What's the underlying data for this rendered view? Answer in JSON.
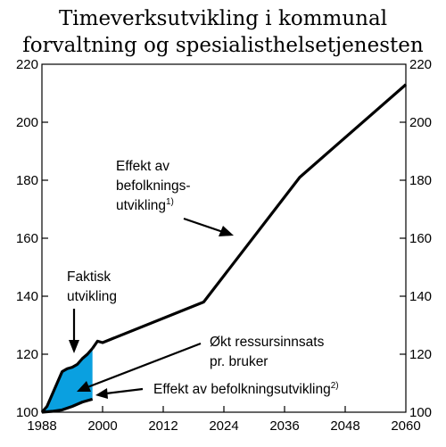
{
  "chart_data": {
    "type": "line",
    "title": [
      "Timeverksutvikling i kommunal",
      "forvaltning og spesialisthelsetjenesten"
    ],
    "xlabel": "",
    "ylabel": "",
    "xlim": [
      1988,
      2060
    ],
    "ylim": [
      100,
      220
    ],
    "x_ticks": [
      "1988",
      "2000",
      "2012",
      "2024",
      "2036",
      "2048",
      "2060"
    ],
    "y_ticks": [
      "100",
      "120",
      "140",
      "160",
      "180",
      "200",
      "220"
    ],
    "grid": false,
    "series": [
      {
        "name": "Faktisk utvikling",
        "style": "thick",
        "x": [
          1988,
          1989,
          1990,
          1991,
          1992,
          1993,
          1994,
          1995,
          1996,
          1997,
          1998
        ],
        "y": [
          100,
          102,
          106,
          110,
          114,
          115,
          115.5,
          116.5,
          118.5,
          120,
          122
        ]
      },
      {
        "name": "Effekt av befolkningsutvikling",
        "style": "thick",
        "x": [
          1998,
          1999,
          2000,
          2020,
          2039,
          2060
        ],
        "y": [
          122,
          124.5,
          124,
          138,
          181,
          213
        ]
      },
      {
        "name": "Effekt av befolkningsutvikling",
        "style": "thick",
        "x": [
          1988,
          1990,
          1992,
          1994,
          1996,
          1998
        ],
        "y": [
          100,
          100.3,
          100.8,
          102,
          103.5,
          104.5
        ]
      }
    ],
    "shaded_area": {
      "color": "#0aa0e0",
      "label": "Økt ressursinnsats pr. bruker"
    },
    "annotations": {
      "effekt": [
        "Effekt av",
        "befolknings-",
        "utvikling"
      ],
      "effekt_sup": "1)",
      "faktisk": [
        "Faktisk",
        "utvikling"
      ],
      "okt": [
        "Økt ressursinnsats",
        "pr. bruker"
      ],
      "effekt2": "Effekt av befolkningsutvikling",
      "effekt2_sup": "2)"
    },
    "colors": {
      "line": "#000000",
      "fill": "#0aa0e0"
    }
  }
}
